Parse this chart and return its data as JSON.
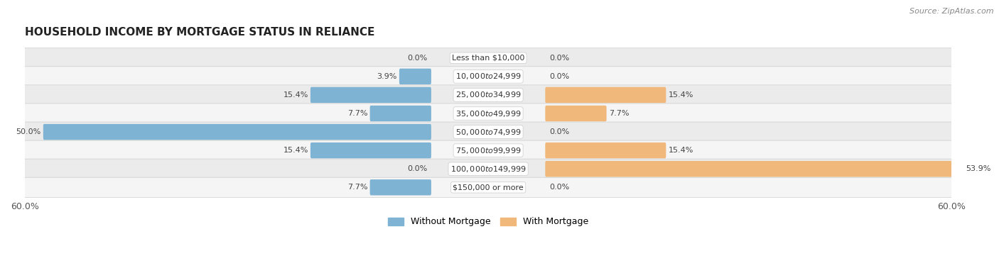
{
  "title": "HOUSEHOLD INCOME BY MORTGAGE STATUS IN RELIANCE",
  "source": "Source: ZipAtlas.com",
  "categories": [
    "Less than $10,000",
    "$10,000 to $24,999",
    "$25,000 to $34,999",
    "$35,000 to $49,999",
    "$50,000 to $74,999",
    "$75,000 to $99,999",
    "$100,000 to $149,999",
    "$150,000 or more"
  ],
  "without_mortgage": [
    0.0,
    3.9,
    15.4,
    7.7,
    50.0,
    15.4,
    0.0,
    7.7
  ],
  "with_mortgage": [
    0.0,
    0.0,
    15.4,
    7.7,
    0.0,
    15.4,
    53.9,
    0.0
  ],
  "color_without": "#7fb3d3",
  "color_with": "#f0b87a",
  "color_without_dark": "#5a9abf",
  "color_with_dark": "#e09a55",
  "row_bg_odd": "#ebebeb",
  "row_bg_even": "#f5f5f5",
  "xlim": 60.0,
  "title_fontsize": 11,
  "label_fontsize": 8,
  "tick_fontsize": 9,
  "source_fontsize": 8,
  "fig_bg": "#ffffff",
  "legend_label_without": "Without Mortgage",
  "legend_label_with": "With Mortgage"
}
